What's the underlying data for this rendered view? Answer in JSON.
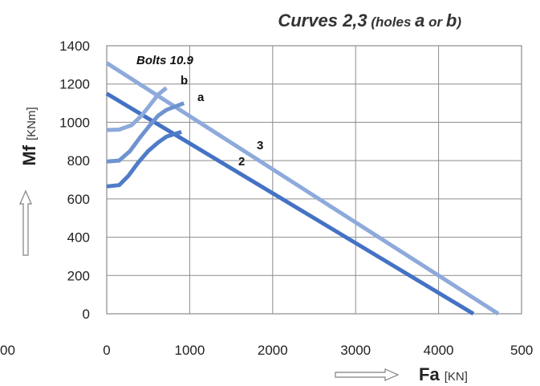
{
  "chart_data": {
    "type": "line",
    "title": {
      "main": "Curves 2,3",
      "open": " (holes ",
      "a": "a",
      "or": " or ",
      "b": "b",
      "close": ")"
    },
    "xlabel": "Fa",
    "xunit": "[KN]",
    "ylabel": "Mf",
    "yunit": "[KNm]",
    "xlim": [
      0,
      5000
    ],
    "ylim": [
      0,
      1400
    ],
    "x_ticks": [
      0,
      1000,
      2000,
      3000,
      4000
    ],
    "x_tick_labels": [
      "0",
      "1000",
      "2000",
      "3000",
      "4000"
    ],
    "x_clipped_right_label": "500",
    "x_clipped_left_label": "00",
    "y_ticks": [
      0,
      200,
      400,
      600,
      800,
      1000,
      1200,
      1400
    ],
    "y_tick_labels": [
      "0",
      "200",
      "400",
      "600",
      "800",
      "1000",
      "1200",
      "1400"
    ],
    "grid": true,
    "annotations": {
      "bolts": "Bolts 10.9",
      "b": "b",
      "a": "a",
      "c3": "3",
      "c2": "2"
    },
    "series": [
      {
        "name": "3",
        "color": "#8eaadb",
        "points": [
          [
            0,
            1310
          ],
          [
            4720,
            0
          ]
        ]
      },
      {
        "name": "2",
        "color": "#4472c4",
        "points": [
          [
            0,
            1150
          ],
          [
            4420,
            0
          ]
        ]
      },
      {
        "color": "#8eaadb",
        "points": [
          [
            0,
            960
          ],
          [
            150,
            962
          ],
          [
            300,
            985
          ],
          [
            420,
            1035
          ],
          [
            520,
            1090
          ],
          [
            620,
            1145
          ],
          [
            720,
            1180
          ]
        ]
      },
      {
        "color": "#6f93d0",
        "points": [
          [
            0,
            795
          ],
          [
            150,
            800
          ],
          [
            280,
            850
          ],
          [
            400,
            920
          ],
          [
            520,
            985
          ],
          [
            620,
            1035
          ],
          [
            720,
            1065
          ],
          [
            930,
            1100
          ]
        ]
      },
      {
        "color": "#4f7bc9",
        "points": [
          [
            0,
            665
          ],
          [
            150,
            672
          ],
          [
            260,
            720
          ],
          [
            380,
            790
          ],
          [
            500,
            850
          ],
          [
            620,
            895
          ],
          [
            720,
            925
          ],
          [
            900,
            950
          ]
        ]
      }
    ]
  }
}
